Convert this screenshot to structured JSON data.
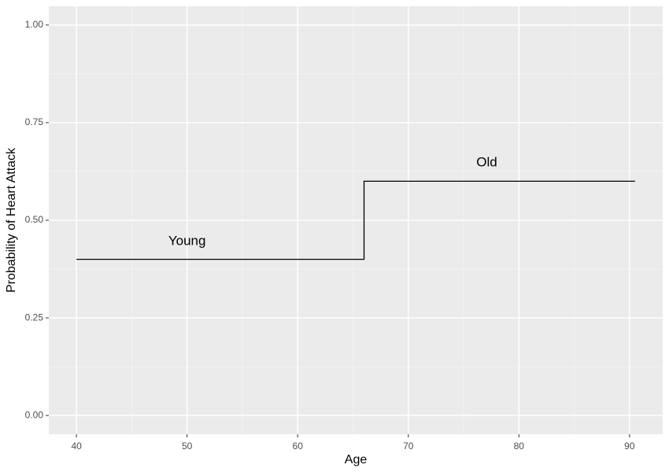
{
  "chart_data": {
    "type": "line",
    "x_label": "Age",
    "y_label": "Probability of Heart Attack",
    "x": [
      40,
      66,
      66,
      90.5
    ],
    "series": [
      {
        "color": "#000000",
        "values": [
          0.4,
          0.4,
          0.6,
          0.6
        ]
      }
    ],
    "xlim": [
      37.5,
      93
    ],
    "ylim": [
      -0.048,
      1.048
    ],
    "xticks": [
      40,
      50,
      60,
      70,
      80,
      90
    ],
    "yticks": [
      {
        "value": 0,
        "label": "0.00"
      },
      {
        "value": 0.25,
        "label": "0.25"
      },
      {
        "value": 0.5,
        "label": "0.50"
      },
      {
        "value": 0.75,
        "label": "0.75"
      },
      {
        "value": 1,
        "label": "1.00"
      }
    ],
    "x_minor_ticks": [
      45,
      55,
      65,
      75,
      85
    ],
    "y_minor_ticks": [
      0.125,
      0.375,
      0.625,
      0.875
    ],
    "grid": true,
    "annotations": [
      {
        "text": "Young",
        "x": 50,
        "y": 0.446
      },
      {
        "text": "Old",
        "x": 77.1,
        "y": 0.647
      }
    ]
  }
}
